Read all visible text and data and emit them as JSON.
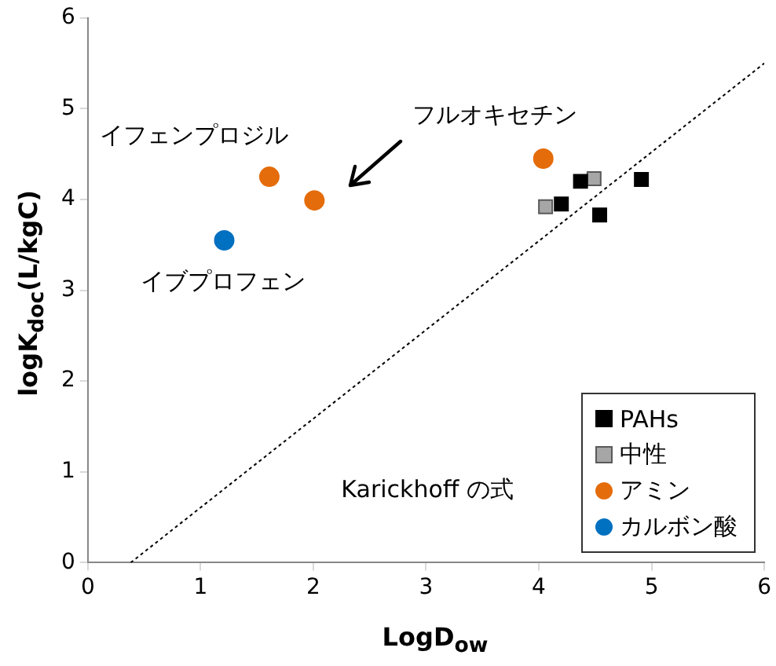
{
  "chart_data": {
    "type": "scatter",
    "xlabel": "LogD$_{ow}$",
    "ylabel": "logK$_{doc}$(L/kgC)",
    "xlim": [
      0,
      6
    ],
    "xticks": [
      0,
      1,
      2,
      3,
      4,
      5,
      6
    ],
    "ylim": [
      0,
      6
    ],
    "yticks": [
      0,
      1,
      2,
      3,
      4,
      5,
      6
    ],
    "grid": false,
    "legend": "bottom right",
    "series": [
      {
        "name": "PAHs",
        "color": "#000000",
        "marker": "square",
        "x": [
          4.37,
          4.2,
          4.54,
          4.91
        ],
        "values": [
          4.2,
          3.95,
          3.83,
          4.22
        ]
      },
      {
        "name": "中性",
        "color": "#a6a6a6",
        "marker": "square",
        "x": [
          4.49,
          4.06
        ],
        "values": [
          4.23,
          3.92
        ]
      },
      {
        "name": "アミン",
        "color": "#e46c0a",
        "marker": "circle",
        "x": [
          1.61,
          2.01,
          4.04
        ],
        "values": [
          4.25,
          3.99,
          4.45
        ]
      },
      {
        "name": "カルボン酸",
        "color": "#0070c0",
        "marker": "circle",
        "x": [
          1.21
        ],
        "values": [
          3.55
        ]
      },
      {
        "type": "line",
        "color": "#000000",
        "line_style": "dotted",
        "marker": "none",
        "x": [
          0.38,
          6
        ],
        "values": [
          0,
          5.5
        ]
      }
    ],
    "annotations": [
      "イフェンプロジル",
      "フルオキセチン",
      "イブプロフェン",
      "Karickhoff の式"
    ]
  }
}
